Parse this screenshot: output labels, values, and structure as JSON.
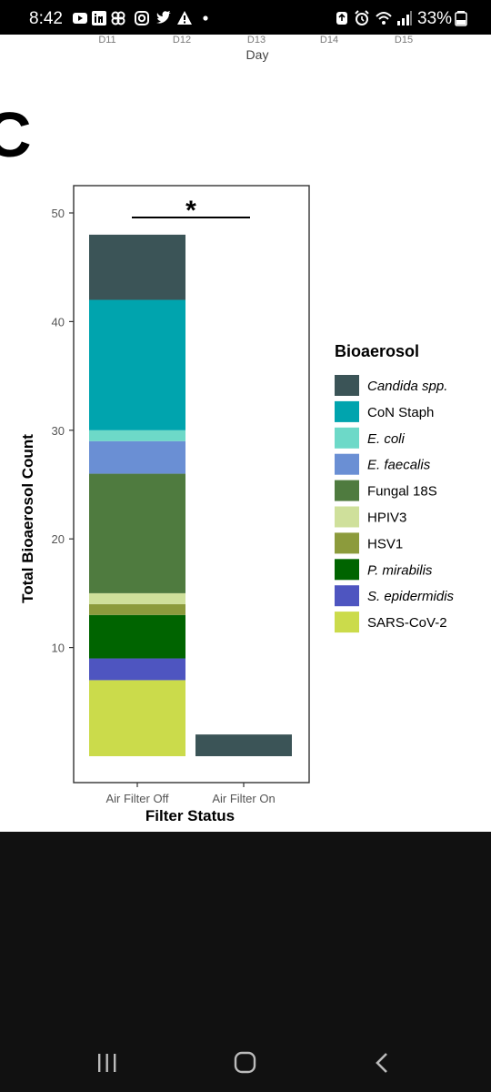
{
  "status_bar": {
    "time": "8:42",
    "battery": "33%",
    "icons": [
      "youtube-icon",
      "linkedin-icon",
      "pinwheel-icon",
      "instagram-icon",
      "twitter-icon",
      "alert-icon",
      "dot-icon",
      "recycle-icon",
      "alarm-icon",
      "wifi-icon",
      "signal-icon",
      "battery-icon"
    ]
  },
  "previous_chart": {
    "tick_labels": [
      "D11",
      "D12",
      "D13",
      "D14",
      "D15"
    ],
    "xlabel": "Day"
  },
  "panel_letter": "C",
  "chart_data": {
    "type": "bar",
    "stacked": true,
    "title": "",
    "xlabel": "Filter Status",
    "ylabel": "Total Bioaerosol Count",
    "categories": [
      "Air Filter Off",
      "Air Filter On"
    ],
    "y_ticks": [
      10,
      20,
      30,
      40,
      50
    ],
    "ylim": [
      0,
      52
    ],
    "grid": false,
    "legend_title": "Bioaerosol",
    "legend_position": "right",
    "significance": "*",
    "stack_order": [
      "SARS-CoV-2",
      "S. epidermidis",
      "P. mirabilis",
      "HSV1",
      "HPIV3",
      "Fungal 18S",
      "E. faecalis",
      "E. coli",
      "CoN Staph",
      "Candida spp."
    ],
    "series": [
      {
        "name": "Candida spp.",
        "italic": true,
        "color": "#3b5457",
        "values": [
          6,
          2
        ]
      },
      {
        "name": "CoN Staph",
        "italic": false,
        "color": "#00a4ae",
        "values": [
          12,
          0
        ]
      },
      {
        "name": "E. coli",
        "italic": true,
        "color": "#6dd9c8",
        "values": [
          1,
          0
        ]
      },
      {
        "name": "E. faecalis",
        "italic": true,
        "color": "#6a8fd4",
        "values": [
          3,
          0
        ]
      },
      {
        "name": "Fungal 18S",
        "italic": false,
        "color": "#4f7b3f",
        "values": [
          11,
          0
        ]
      },
      {
        "name": "HPIV3",
        "italic": false,
        "color": "#cfe09b",
        "values": [
          1,
          0
        ]
      },
      {
        "name": "HSV1",
        "italic": false,
        "color": "#8c9b3c",
        "values": [
          1,
          0
        ]
      },
      {
        "name": "P. mirabilis",
        "italic": true,
        "color": "#006400",
        "values": [
          4,
          0
        ]
      },
      {
        "name": "S. epidermidis",
        "italic": true,
        "color": "#4e55c0",
        "values": [
          2,
          0
        ]
      },
      {
        "name": "SARS-CoV-2",
        "italic": false,
        "color": "#cbdb4b",
        "values": [
          7,
          0
        ]
      }
    ]
  }
}
